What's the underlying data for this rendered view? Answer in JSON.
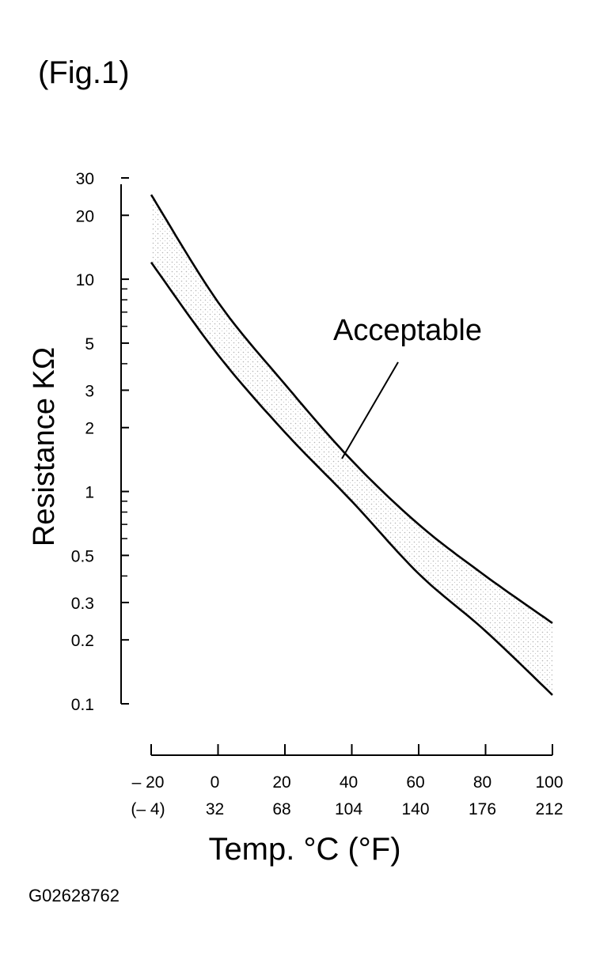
{
  "figure_label": "(Fig.1)",
  "footer_code": "G02628762",
  "chart_data": {
    "type": "line",
    "title": "",
    "xlabel": "Temp. °C (°F)",
    "ylabel": "Resistance KΩ",
    "yscale": "log",
    "xlim": [
      -20,
      100
    ],
    "ylim": [
      0.1,
      30
    ],
    "x_ticks": [
      -20,
      0,
      20,
      40,
      60,
      80,
      100
    ],
    "x_tick_labels_c": [
      "– 20",
      "0",
      "20",
      "40",
      "60",
      "80",
      "100"
    ],
    "x_tick_labels_f": [
      "(– 4)",
      "32",
      "68",
      "104",
      "140",
      "176",
      "212"
    ],
    "y_ticks": [
      0.1,
      0.2,
      0.3,
      0.5,
      1,
      2,
      3,
      5,
      10,
      20,
      30
    ],
    "y_tick_labels": [
      "0.1",
      "0.2",
      "0.3",
      "0.5",
      "1",
      "2",
      "3",
      "5",
      "10",
      "20",
      "30"
    ],
    "y_minor_ticks": [
      0.4,
      0.6,
      0.7,
      0.8,
      0.9,
      4,
      6,
      7,
      8,
      9
    ],
    "x": [
      -20,
      0,
      20,
      40,
      60,
      80,
      100
    ],
    "series": [
      {
        "values": [
          25,
          7.8,
          3.2,
          1.4,
          0.7,
          0.4,
          0.24
        ]
      },
      {
        "values": [
          12,
          4.4,
          1.9,
          0.9,
          0.41,
          0.22,
          0.11
        ]
      }
    ],
    "shaded_band": "between series",
    "annotation": "Acceptable",
    "grid": false
  }
}
